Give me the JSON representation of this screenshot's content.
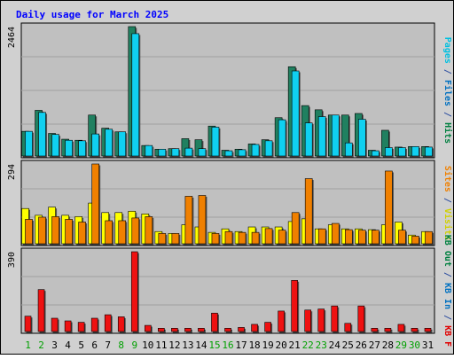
{
  "chart_data": {
    "type": "bar",
    "title": "Daily usage for March 2025",
    "categories": [
      "1",
      "2",
      "3",
      "4",
      "5",
      "6",
      "7",
      "8",
      "9",
      "10",
      "11",
      "12",
      "13",
      "14",
      "15",
      "16",
      "17",
      "18",
      "19",
      "20",
      "21",
      "22",
      "23",
      "24",
      "25",
      "26",
      "27",
      "28",
      "29",
      "30",
      "31"
    ],
    "weekend_days": [
      "1",
      "2",
      "8",
      "9",
      "15",
      "16",
      "22",
      "23",
      "29",
      "30"
    ],
    "grid": true,
    "panels": [
      {
        "id": "top",
        "axis_max_label": "2464",
        "ylim": [
          0,
          2464
        ],
        "side_labels": [
          {
            "text": "Hits",
            "color": "#008040"
          },
          {
            "text": " / ",
            "color": "#3050a0"
          },
          {
            "text": "Files",
            "color": "#0070c0"
          },
          {
            "text": " / ",
            "color": "#3050a0"
          },
          {
            "text": "Pages",
            "color": "#00c0e0"
          }
        ],
        "series": [
          {
            "name": "Hits",
            "color": "#208060",
            "values": [
              470,
              870,
              430,
              320,
              300,
              780,
              530,
              460,
              2464,
              200,
              130,
              140,
              330,
              310,
              570,
              110,
              130,
              230,
              310,
              730,
              1700,
              960,
              880,
              780,
              780,
              810,
              110,
              490,
              170,
              180,
              180
            ]
          },
          {
            "name": "Files",
            "color": "#10d0f0",
            "values": [
              470,
              830,
              410,
              300,
              290,
              420,
              510,
              460,
              2330,
              200,
              130,
              140,
              150,
              140,
              550,
              100,
              120,
              220,
              290,
              690,
              1620,
              630,
              750,
              780,
              250,
              700,
              100,
              160,
              160,
              180,
              170
            ]
          }
        ]
      },
      {
        "id": "middle",
        "axis_max_label": "294",
        "ylim": [
          0,
          294
        ],
        "side_labels": [
          {
            "text": "Visits",
            "color": "#d0d000"
          },
          {
            "text": " / ",
            "color": "#3050a0"
          },
          {
            "text": "Sites",
            "color": "#f08000"
          }
        ],
        "series": [
          {
            "name": "Visits",
            "color": "#ffff00",
            "values": [
              130,
              105,
              135,
              105,
              100,
              150,
              115,
              115,
              120,
              110,
              45,
              38,
              70,
              62,
              42,
              55,
              45,
              62,
              62,
              62,
              82,
              92,
              55,
              70,
              55,
              55,
              52,
              70,
              80,
              32,
              45
            ]
          },
          {
            "name": "Sites",
            "color": "#f08000",
            "values": [
              90,
              98,
              100,
              90,
              80,
              294,
              85,
              85,
              95,
              100,
              38,
              38,
              175,
              178,
              38,
              45,
              42,
              42,
              56,
              50,
              115,
              240,
              55,
              75,
              52,
              50,
              50,
              268,
              50,
              28,
              45
            ]
          }
        ]
      },
      {
        "id": "bottom",
        "axis_max_label": "390",
        "ylim": [
          0,
          390
        ],
        "side_labels": [
          {
            "text": "KB F",
            "color": "#e00000"
          },
          {
            "text": " / ",
            "color": "#3050a0"
          },
          {
            "text": "KB In",
            "color": "#0070c0"
          },
          {
            "text": " / ",
            "color": "#3050a0"
          },
          {
            "text": "KB Out",
            "color": "#008040"
          }
        ],
        "series": [
          {
            "name": "KB F",
            "color": "#ee1111",
            "values": [
              75,
              205,
              65,
              52,
              45,
              65,
              82,
              72,
              390,
              30,
              16,
              16,
              16,
              16,
              90,
              16,
              20,
              35,
              45,
              100,
              250,
              105,
              110,
              125,
              40,
              125,
              16,
              16,
              35,
              16,
              16
            ]
          }
        ]
      }
    ]
  }
}
